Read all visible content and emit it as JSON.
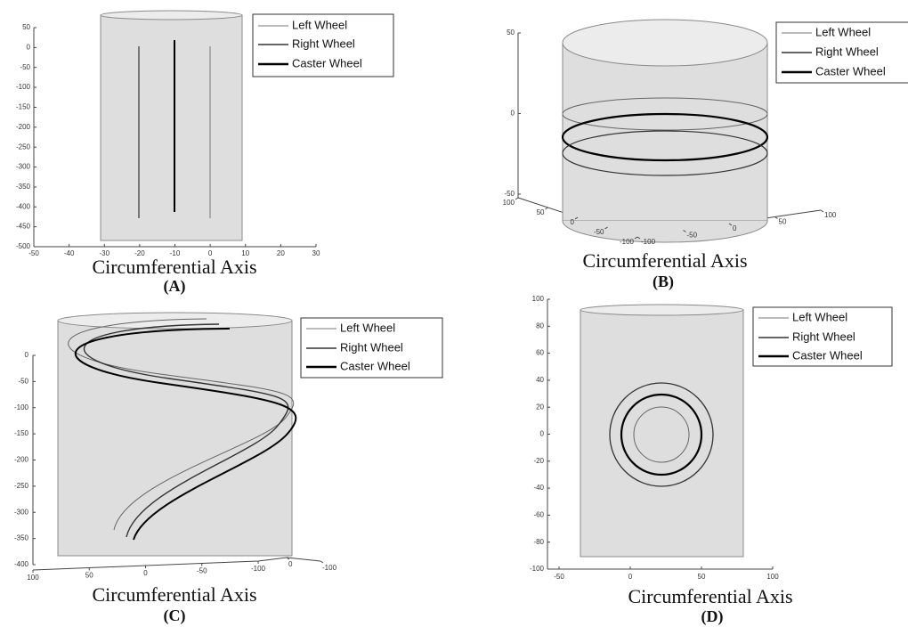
{
  "panels": [
    {
      "label": "(A)",
      "xlabel": "Circumferential Axis",
      "legend": [
        "Left Wheel",
        "Right Wheel",
        "Caster Wheel"
      ],
      "yticks": [
        50,
        0,
        -50,
        -100,
        -150,
        -200,
        -250,
        -300,
        -350,
        -400,
        -450,
        -500
      ],
      "xticks": [
        -50,
        -40,
        -30,
        -20,
        -10,
        0,
        10,
        20,
        30
      ]
    },
    {
      "label": "(B)",
      "xlabel": "Circumferential Axis",
      "legend": [
        "Left Wheel",
        "Right Wheel",
        "Caster Wheel"
      ],
      "yticks": [
        50,
        0,
        -50
      ],
      "xticks_left": [
        100,
        50,
        0,
        -50,
        -100
      ],
      "xticks_right": [
        -100,
        -50,
        0,
        50,
        100
      ]
    },
    {
      "label": "(C)",
      "xlabel": "Circumferential Axis",
      "legend": [
        "Left Wheel",
        "Right Wheel",
        "Caster Wheel"
      ],
      "yticks": [
        0,
        -50,
        -100,
        -150,
        -200,
        -250,
        -300,
        -350,
        -400
      ],
      "xticks_left": [
        100,
        50,
        0,
        -50,
        -100
      ],
      "xticks_right": [
        0,
        -100
      ]
    },
    {
      "label": "(D)",
      "xlabel": "Circumferential Axis",
      "legend": [
        "Left Wheel",
        "Right Wheel",
        "Caster Wheel"
      ],
      "yticks": [
        100,
        80,
        60,
        40,
        20,
        0,
        -20,
        -40,
        -60,
        -80,
        -100
      ],
      "xticks": [
        -50,
        0,
        50,
        100
      ]
    }
  ]
}
